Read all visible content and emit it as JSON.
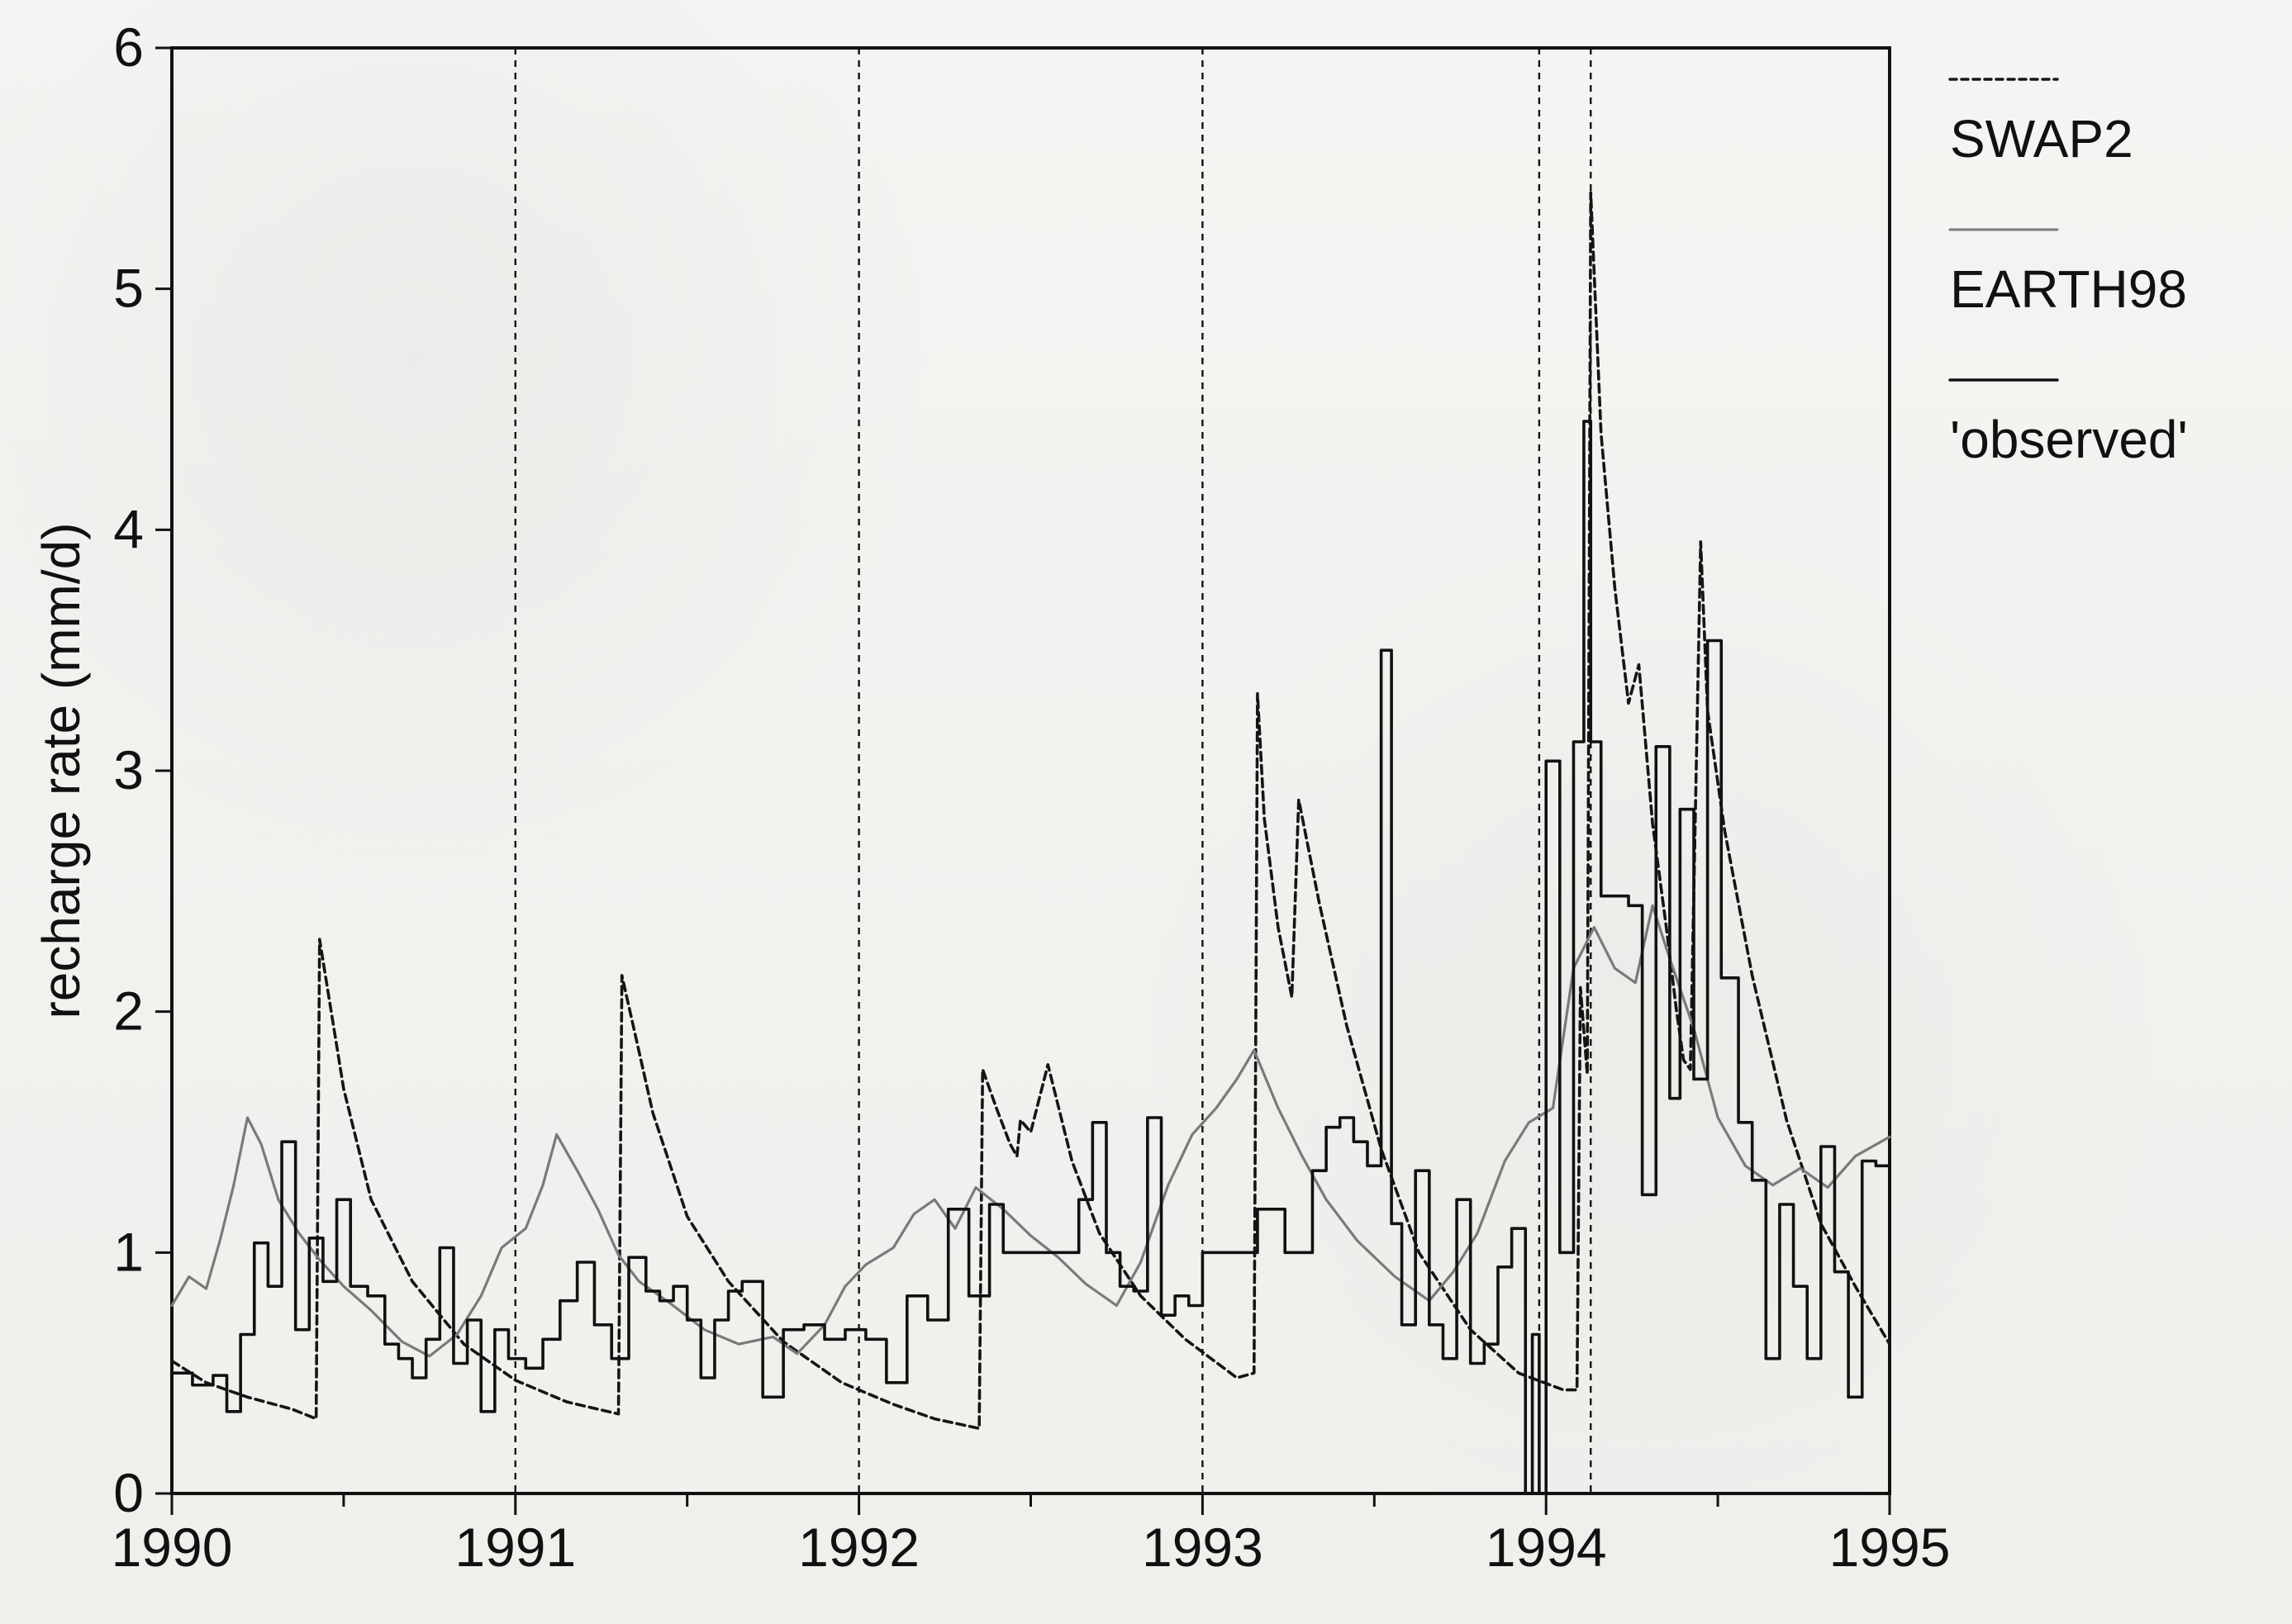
{
  "chart_data": {
    "type": "line",
    "title": "",
    "xlabel": "",
    "ylabel": "recharge rate (mm/d)",
    "xlim": [
      1990,
      1995
    ],
    "ylim": [
      0,
      6
    ],
    "x_ticks": [
      1990,
      1991,
      1992,
      1993,
      1994,
      1995
    ],
    "y_ticks": [
      0,
      1,
      2,
      3,
      4,
      5,
      6
    ],
    "x_minor_ticks": [
      1990.5,
      1991.5,
      1992.5,
      1993.5,
      1994.5
    ],
    "grid": false,
    "legend": {
      "position": "right"
    },
    "vertical_markers": [
      1991,
      1992,
      1993,
      1993.98,
      1994.13
    ],
    "series": [
      {
        "name": "SWAP2",
        "style": "dashed",
        "color": "#151515",
        "points": [
          [
            1990.0,
            0.55
          ],
          [
            1990.1,
            0.46
          ],
          [
            1990.22,
            0.4
          ],
          [
            1990.35,
            0.35
          ],
          [
            1990.42,
            0.31
          ],
          [
            1990.43,
            2.3
          ],
          [
            1990.5,
            1.68
          ],
          [
            1990.58,
            1.22
          ],
          [
            1990.7,
            0.88
          ],
          [
            1990.85,
            0.62
          ],
          [
            1991.0,
            0.47
          ],
          [
            1991.15,
            0.38
          ],
          [
            1991.3,
            0.33
          ],
          [
            1991.31,
            2.15
          ],
          [
            1991.4,
            1.58
          ],
          [
            1991.5,
            1.15
          ],
          [
            1991.62,
            0.88
          ],
          [
            1991.78,
            0.63
          ],
          [
            1991.95,
            0.46
          ],
          [
            1992.1,
            0.37
          ],
          [
            1992.22,
            0.31
          ],
          [
            1992.35,
            0.27
          ],
          [
            1992.36,
            1.76
          ],
          [
            1992.4,
            1.6
          ],
          [
            1992.44,
            1.45
          ],
          [
            1992.46,
            1.4
          ],
          [
            1992.47,
            1.55
          ],
          [
            1992.5,
            1.5
          ],
          [
            1992.55,
            1.78
          ],
          [
            1992.62,
            1.38
          ],
          [
            1992.7,
            1.08
          ],
          [
            1992.82,
            0.82
          ],
          [
            1992.95,
            0.64
          ],
          [
            1993.1,
            0.48
          ],
          [
            1993.15,
            0.5
          ],
          [
            1993.16,
            3.32
          ],
          [
            1993.18,
            2.8
          ],
          [
            1993.22,
            2.35
          ],
          [
            1993.26,
            2.06
          ],
          [
            1993.28,
            2.88
          ],
          [
            1993.34,
            2.45
          ],
          [
            1993.42,
            1.94
          ],
          [
            1993.52,
            1.43
          ],
          [
            1993.63,
            1.0
          ],
          [
            1993.78,
            0.68
          ],
          [
            1993.92,
            0.5
          ],
          [
            1994.05,
            0.43
          ],
          [
            1994.09,
            0.43
          ],
          [
            1994.1,
            2.1
          ],
          [
            1994.12,
            1.74
          ],
          [
            1994.13,
            5.4
          ],
          [
            1994.16,
            4.4
          ],
          [
            1994.2,
            3.76
          ],
          [
            1994.24,
            3.28
          ],
          [
            1994.27,
            3.44
          ],
          [
            1994.31,
            2.78
          ],
          [
            1994.35,
            2.35
          ],
          [
            1994.38,
            2.0
          ],
          [
            1994.4,
            1.8
          ],
          [
            1994.42,
            1.76
          ],
          [
            1994.45,
            3.95
          ],
          [
            1994.47,
            3.25
          ],
          [
            1994.52,
            2.75
          ],
          [
            1994.6,
            2.15
          ],
          [
            1994.7,
            1.55
          ],
          [
            1994.8,
            1.12
          ],
          [
            1994.9,
            0.86
          ],
          [
            1995.0,
            0.62
          ]
        ]
      },
      {
        "name": "EARTH98",
        "style": "solid",
        "color": "#7a7a7a",
        "points": [
          [
            1990.0,
            0.78
          ],
          [
            1990.05,
            0.9
          ],
          [
            1990.1,
            0.85
          ],
          [
            1990.14,
            1.05
          ],
          [
            1990.18,
            1.28
          ],
          [
            1990.22,
            1.56
          ],
          [
            1990.26,
            1.45
          ],
          [
            1990.31,
            1.22
          ],
          [
            1990.37,
            1.08
          ],
          [
            1990.43,
            0.97
          ],
          [
            1990.5,
            0.86
          ],
          [
            1990.58,
            0.76
          ],
          [
            1990.67,
            0.63
          ],
          [
            1990.75,
            0.57
          ],
          [
            1990.83,
            0.66
          ],
          [
            1990.9,
            0.82
          ],
          [
            1990.96,
            1.02
          ],
          [
            1991.03,
            1.1
          ],
          [
            1991.08,
            1.28
          ],
          [
            1991.12,
            1.49
          ],
          [
            1991.18,
            1.34
          ],
          [
            1991.24,
            1.18
          ],
          [
            1991.3,
            0.99
          ],
          [
            1991.36,
            0.88
          ],
          [
            1991.45,
            0.79
          ],
          [
            1991.55,
            0.68
          ],
          [
            1991.65,
            0.62
          ],
          [
            1991.75,
            0.65
          ],
          [
            1991.82,
            0.58
          ],
          [
            1991.9,
            0.7
          ],
          [
            1991.96,
            0.86
          ],
          [
            1992.02,
            0.95
          ],
          [
            1992.1,
            1.02
          ],
          [
            1992.16,
            1.16
          ],
          [
            1992.22,
            1.22
          ],
          [
            1992.28,
            1.1
          ],
          [
            1992.34,
            1.27
          ],
          [
            1992.42,
            1.18
          ],
          [
            1992.5,
            1.07
          ],
          [
            1992.58,
            0.98
          ],
          [
            1992.66,
            0.87
          ],
          [
            1992.75,
            0.78
          ],
          [
            1992.82,
            0.96
          ],
          [
            1992.9,
            1.28
          ],
          [
            1992.97,
            1.49
          ],
          [
            1993.04,
            1.6
          ],
          [
            1993.1,
            1.72
          ],
          [
            1993.15,
            1.84
          ],
          [
            1993.22,
            1.6
          ],
          [
            1993.29,
            1.4
          ],
          [
            1993.36,
            1.22
          ],
          [
            1993.45,
            1.05
          ],
          [
            1993.56,
            0.9
          ],
          [
            1993.66,
            0.8
          ],
          [
            1993.73,
            0.92
          ],
          [
            1993.8,
            1.08
          ],
          [
            1993.88,
            1.38
          ],
          [
            1993.95,
            1.54
          ],
          [
            1994.02,
            1.6
          ],
          [
            1994.08,
            2.18
          ],
          [
            1994.14,
            2.35
          ],
          [
            1994.2,
            2.18
          ],
          [
            1994.26,
            2.12
          ],
          [
            1994.31,
            2.44
          ],
          [
            1994.36,
            2.22
          ],
          [
            1994.43,
            1.93
          ],
          [
            1994.5,
            1.56
          ],
          [
            1994.58,
            1.36
          ],
          [
            1994.66,
            1.28
          ],
          [
            1994.74,
            1.35
          ],
          [
            1994.82,
            1.27
          ],
          [
            1994.9,
            1.4
          ],
          [
            1995.0,
            1.48
          ]
        ]
      },
      {
        "name": "'observed'",
        "style": "step",
        "color": "#111111",
        "points": [
          [
            1990.0,
            0.5
          ],
          [
            1990.06,
            0.45
          ],
          [
            1990.12,
            0.49
          ],
          [
            1990.16,
            0.34
          ],
          [
            1990.2,
            0.66
          ],
          [
            1990.24,
            1.04
          ],
          [
            1990.28,
            0.86
          ],
          [
            1990.32,
            1.46
          ],
          [
            1990.36,
            0.68
          ],
          [
            1990.4,
            1.06
          ],
          [
            1990.44,
            0.88
          ],
          [
            1990.48,
            1.22
          ],
          [
            1990.52,
            0.86
          ],
          [
            1990.57,
            0.82
          ],
          [
            1990.62,
            0.62
          ],
          [
            1990.66,
            0.56
          ],
          [
            1990.7,
            0.48
          ],
          [
            1990.74,
            0.64
          ],
          [
            1990.78,
            1.02
          ],
          [
            1990.82,
            0.54
          ],
          [
            1990.86,
            0.72
          ],
          [
            1990.9,
            0.34
          ],
          [
            1990.94,
            0.68
          ],
          [
            1990.98,
            0.56
          ],
          [
            1991.03,
            0.52
          ],
          [
            1991.08,
            0.64
          ],
          [
            1991.13,
            0.8
          ],
          [
            1991.18,
            0.96
          ],
          [
            1991.23,
            0.7
          ],
          [
            1991.28,
            0.56
          ],
          [
            1991.33,
            0.98
          ],
          [
            1991.38,
            0.84
          ],
          [
            1991.42,
            0.8
          ],
          [
            1991.46,
            0.86
          ],
          [
            1991.5,
            0.72
          ],
          [
            1991.54,
            0.48
          ],
          [
            1991.58,
            0.72
          ],
          [
            1991.62,
            0.84
          ],
          [
            1991.66,
            0.88
          ],
          [
            1991.72,
            0.4
          ],
          [
            1991.78,
            0.68
          ],
          [
            1991.84,
            0.7
          ],
          [
            1991.9,
            0.64
          ],
          [
            1991.96,
            0.68
          ],
          [
            1992.02,
            0.64
          ],
          [
            1992.08,
            0.46
          ],
          [
            1992.14,
            0.82
          ],
          [
            1992.2,
            0.72
          ],
          [
            1992.26,
            1.18
          ],
          [
            1992.32,
            0.82
          ],
          [
            1992.38,
            1.2
          ],
          [
            1992.42,
            1.0
          ],
          [
            1992.47,
            1.0
          ],
          [
            1992.52,
            1.0
          ],
          [
            1992.58,
            1.0
          ],
          [
            1992.64,
            1.22
          ],
          [
            1992.68,
            1.54
          ],
          [
            1992.72,
            1.0
          ],
          [
            1992.76,
            0.86
          ],
          [
            1992.8,
            0.84
          ],
          [
            1992.84,
            1.56
          ],
          [
            1992.88,
            0.74
          ],
          [
            1992.92,
            0.82
          ],
          [
            1992.96,
            0.78
          ],
          [
            1993.0,
            1.0
          ],
          [
            1993.04,
            1.0
          ],
          [
            1993.08,
            1.0
          ],
          [
            1993.12,
            1.0
          ],
          [
            1993.16,
            1.18
          ],
          [
            1993.2,
            1.18
          ],
          [
            1993.24,
            1.0
          ],
          [
            1993.28,
            1.0
          ],
          [
            1993.32,
            1.34
          ],
          [
            1993.36,
            1.52
          ],
          [
            1993.4,
            1.56
          ],
          [
            1993.44,
            1.46
          ],
          [
            1993.48,
            1.36
          ],
          [
            1993.52,
            3.5
          ],
          [
            1993.55,
            1.12
          ],
          [
            1993.58,
            0.7
          ],
          [
            1993.62,
            1.34
          ],
          [
            1993.66,
            0.7
          ],
          [
            1993.7,
            0.56
          ],
          [
            1993.74,
            1.22
          ],
          [
            1993.78,
            0.54
          ],
          [
            1993.82,
            0.62
          ],
          [
            1993.86,
            0.94
          ],
          [
            1993.9,
            1.1
          ],
          [
            1993.94,
            0.0
          ],
          [
            1993.96,
            0.66
          ],
          [
            1993.98,
            0.0
          ],
          [
            1994.0,
            3.04
          ],
          [
            1994.04,
            1.0
          ],
          [
            1994.08,
            3.12
          ],
          [
            1994.11,
            4.45
          ],
          [
            1994.13,
            3.12
          ],
          [
            1994.16,
            2.48
          ],
          [
            1994.2,
            2.48
          ],
          [
            1994.24,
            2.44
          ],
          [
            1994.28,
            1.24
          ],
          [
            1994.32,
            3.1
          ],
          [
            1994.36,
            1.64
          ],
          [
            1994.39,
            2.84
          ],
          [
            1994.43,
            1.72
          ],
          [
            1994.47,
            3.54
          ],
          [
            1994.51,
            2.14
          ],
          [
            1994.56,
            1.54
          ],
          [
            1994.6,
            1.3
          ],
          [
            1994.64,
            0.56
          ],
          [
            1994.68,
            1.2
          ],
          [
            1994.72,
            0.86
          ],
          [
            1994.76,
            0.56
          ],
          [
            1994.8,
            1.44
          ],
          [
            1994.84,
            0.92
          ],
          [
            1994.88,
            0.4
          ],
          [
            1994.92,
            1.38
          ],
          [
            1994.96,
            1.36
          ],
          [
            1995.0,
            1.36
          ]
        ]
      }
    ]
  }
}
